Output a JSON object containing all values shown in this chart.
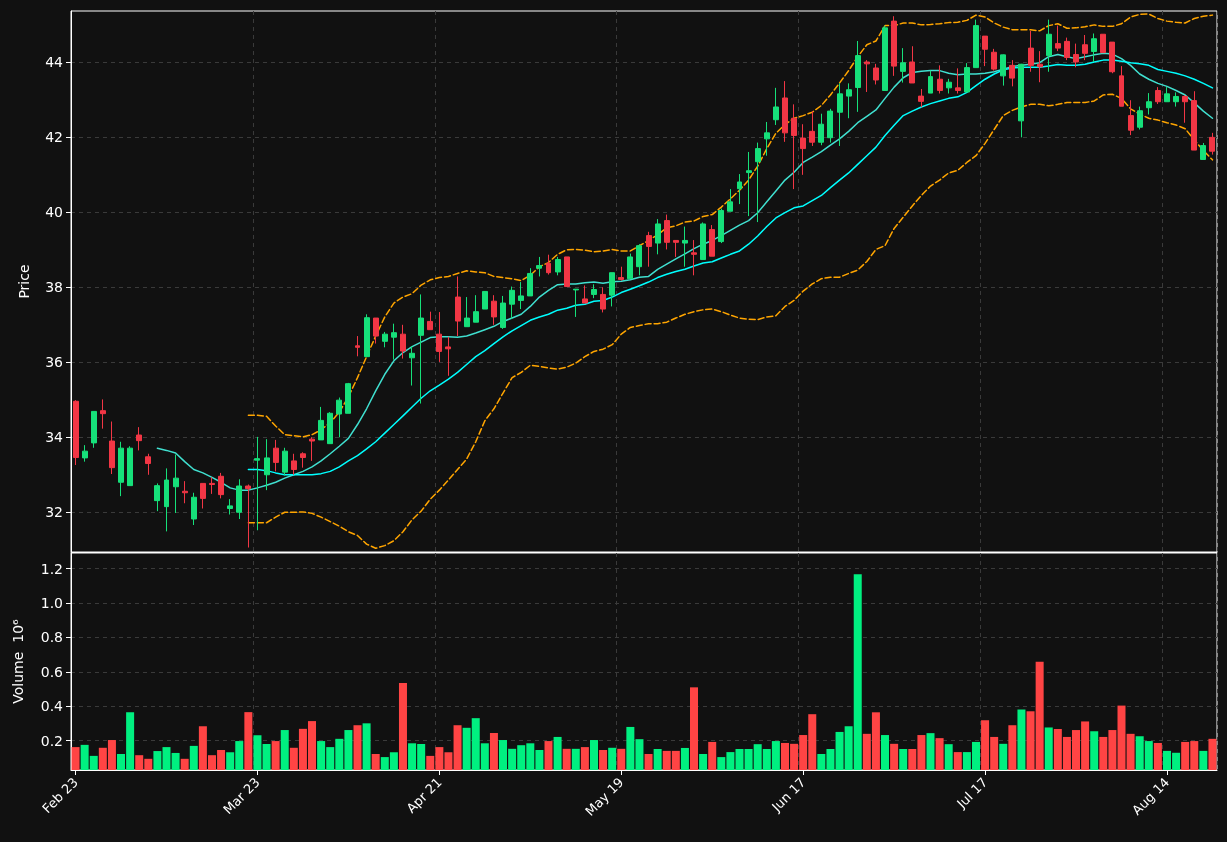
{
  "chart_data": [
    {
      "type": "candlestick",
      "ylabel": "Price",
      "grid": true,
      "tick_labels": "y",
      "categories": [
        null,
        null,
        null,
        null,
        null,
        null,
        null,
        null,
        null,
        null,
        null,
        null,
        null,
        null,
        null,
        null,
        null,
        null,
        null,
        null,
        null,
        null,
        null,
        null,
        null,
        null,
        null,
        null,
        null,
        null,
        null,
        null,
        null,
        null,
        null,
        null,
        null,
        null,
        null,
        null,
        null,
        null,
        null,
        null,
        null,
        null,
        null,
        null,
        null,
        null,
        null,
        null,
        null,
        null,
        null,
        null,
        null,
        null,
        null,
        null,
        null,
        null,
        null,
        null,
        null,
        null,
        null,
        null,
        null,
        null,
        null,
        null,
        null,
        null,
        null,
        null,
        null,
        null,
        null,
        null,
        null,
        null,
        null,
        null,
        null,
        null,
        null,
        null,
        null,
        null,
        null,
        null,
        null,
        null,
        null,
        null,
        null,
        null,
        null,
        null,
        null,
        null,
        null,
        null,
        null,
        null,
        null,
        null,
        null,
        null,
        null,
        null,
        null,
        null,
        null,
        null,
        null,
        null,
        null,
        null,
        null,
        null,
        null,
        null,
        null,
        null
      ],
      "ylim": [
        30.93,
        45.36
      ],
      "yticks": [
        32,
        34,
        36,
        38,
        40,
        42,
        44
      ],
      "ohlc": [
        [
          34.95,
          34.98,
          33.25,
          33.45
        ],
        [
          33.44,
          33.78,
          33.34,
          33.62
        ],
        [
          33.84,
          34.68,
          33.71,
          34.68
        ],
        [
          34.7,
          35.0,
          34.22,
          34.62
        ],
        [
          33.89,
          34.41,
          33.01,
          33.18
        ],
        [
          32.79,
          33.87,
          32.42,
          33.7
        ],
        [
          32.7,
          33.75,
          32.7,
          33.7
        ],
        [
          34.05,
          34.26,
          33.64,
          33.9
        ],
        [
          33.47,
          33.55,
          32.99,
          33.29
        ],
        [
          32.3,
          32.76,
          32.02,
          32.7
        ],
        [
          32.14,
          33.16,
          31.48,
          32.85
        ],
        [
          32.67,
          33.53,
          31.97,
          32.9
        ],
        [
          32.55,
          32.82,
          32.23,
          32.51
        ],
        [
          31.81,
          32.51,
          31.65,
          32.39
        ],
        [
          32.76,
          32.76,
          32.09,
          32.36
        ],
        [
          32.76,
          32.92,
          32.48,
          32.73
        ],
        [
          32.95,
          33.04,
          32.36,
          32.46
        ],
        [
          32.09,
          32.34,
          31.93,
          32.16
        ],
        [
          31.99,
          32.87,
          31.81,
          32.69
        ],
        [
          32.69,
          32.73,
          31.05,
          32.62
        ],
        [
          33.38,
          34.0,
          31.51,
          33.42
        ],
        [
          32.99,
          33.94,
          32.58,
          33.44
        ],
        [
          33.7,
          33.92,
          33.08,
          33.32
        ],
        [
          33.06,
          33.71,
          32.97,
          33.62
        ],
        [
          33.36,
          33.55,
          32.99,
          33.13
        ],
        [
          33.55,
          33.59,
          33.18,
          33.45
        ],
        [
          33.94,
          33.99,
          33.36,
          33.89
        ],
        [
          33.92,
          34.8,
          33.92,
          34.44
        ],
        [
          33.82,
          34.66,
          33.82,
          34.63
        ],
        [
          34.61,
          35.05,
          33.99,
          34.98
        ],
        [
          34.63,
          35.44,
          34.63,
          35.42
        ],
        [
          36.43,
          36.69,
          36.15,
          36.39
        ],
        [
          36.14,
          37.27,
          36.14,
          37.18
        ],
        [
          37.17,
          37.17,
          36.49,
          36.69
        ],
        [
          36.55,
          36.8,
          36.39,
          36.74
        ],
        [
          36.66,
          37.02,
          36.06,
          36.78
        ],
        [
          36.74,
          36.99,
          36.09,
          36.29
        ],
        [
          36.11,
          36.42,
          35.37,
          36.23
        ],
        [
          36.71,
          37.8,
          34.89,
          37.17
        ],
        [
          37.08,
          37.34,
          36.86,
          36.86
        ],
        [
          36.74,
          37.33,
          36.0,
          36.28
        ],
        [
          36.4,
          36.67,
          35.63,
          36.35
        ],
        [
          37.73,
          38.28,
          36.69,
          37.09
        ],
        [
          36.94,
          37.73,
          36.94,
          37.17
        ],
        [
          37.06,
          37.78,
          37.06,
          37.34
        ],
        [
          37.41,
          37.89,
          37.41,
          37.88
        ],
        [
          37.62,
          37.78,
          36.99,
          37.2
        ],
        [
          36.92,
          37.76,
          36.88,
          37.57
        ],
        [
          37.54,
          38.01,
          37.15,
          37.91
        ],
        [
          37.64,
          38.13,
          37.41,
          37.76
        ],
        [
          37.76,
          38.5,
          37.76,
          38.36
        ],
        [
          38.5,
          38.8,
          38.28,
          38.57
        ],
        [
          38.63,
          38.86,
          38.33,
          38.38
        ],
        [
          38.4,
          38.8,
          38.31,
          38.73
        ],
        [
          38.8,
          38.8,
          38.01,
          38.01
        ],
        [
          37.92,
          37.94,
          37.2,
          37.94
        ],
        [
          37.68,
          38.04,
          37.57,
          37.57
        ],
        [
          37.8,
          38.07,
          37.7,
          37.93
        ],
        [
          37.8,
          37.99,
          37.32,
          37.41
        ],
        [
          37.78,
          38.38,
          37.48,
          38.38
        ],
        [
          38.25,
          38.54,
          38.17,
          38.2
        ],
        [
          38.22,
          38.89,
          38.22,
          38.8
        ],
        [
          38.54,
          39.14,
          38.31,
          39.1
        ],
        [
          39.37,
          39.47,
          38.54,
          39.08
        ],
        [
          39.17,
          39.81,
          38.87,
          39.68
        ],
        [
          39.77,
          39.93,
          39.0,
          39.19
        ],
        [
          39.24,
          39.24,
          38.8,
          39.19
        ],
        [
          39.17,
          39.61,
          38.54,
          39.24
        ],
        [
          38.91,
          39.25,
          38.31,
          38.87
        ],
        [
          38.73,
          39.72,
          38.73,
          39.68
        ],
        [
          39.53,
          39.65,
          38.82,
          38.82
        ],
        [
          39.21,
          40.09,
          39.17,
          40.04
        ],
        [
          40.02,
          40.61,
          40.02,
          40.27
        ],
        [
          40.62,
          41.01,
          40.21,
          40.8
        ],
        [
          41.05,
          41.6,
          39.89,
          41.1
        ],
        [
          41.34,
          41.85,
          39.73,
          41.69
        ],
        [
          41.95,
          42.4,
          41.5,
          42.11
        ],
        [
          42.46,
          43.31,
          42.32,
          42.8
        ],
        [
          43.04,
          43.49,
          41.87,
          42.11
        ],
        [
          42.5,
          42.87,
          40.61,
          42.04
        ],
        [
          41.97,
          42.34,
          40.99,
          41.69
        ],
        [
          42.15,
          42.69,
          41.76,
          41.86
        ],
        [
          41.86,
          42.62,
          41.78,
          42.34
        ],
        [
          41.98,
          42.75,
          41.85,
          42.69
        ],
        [
          42.66,
          43.43,
          41.76,
          43.15
        ],
        [
          43.09,
          43.43,
          42.5,
          43.26
        ],
        [
          43.32,
          44.56,
          42.67,
          44.17
        ],
        [
          44.0,
          44.05,
          43.2,
          43.95
        ],
        [
          43.84,
          43.95,
          43.4,
          43.52
        ],
        [
          43.24,
          44.97,
          43.24,
          44.91
        ],
        [
          45.09,
          45.22,
          43.63,
          43.89
        ],
        [
          43.75,
          44.37,
          43.45,
          43.98
        ],
        [
          44.0,
          44.42,
          43.44,
          43.44
        ],
        [
          43.09,
          43.28,
          42.79,
          42.95
        ],
        [
          43.17,
          43.77,
          43.17,
          43.61
        ],
        [
          43.54,
          43.91,
          43.16,
          43.24
        ],
        [
          43.31,
          43.55,
          43.16,
          43.46
        ],
        [
          43.31,
          43.83,
          43.16,
          43.24
        ],
        [
          43.2,
          43.97,
          43.2,
          43.85
        ],
        [
          43.85,
          45.13,
          43.85,
          44.97
        ],
        [
          44.69,
          44.69,
          43.89,
          44.34
        ],
        [
          44.26,
          44.35,
          43.77,
          43.81
        ],
        [
          43.63,
          44.2,
          43.37,
          44.19
        ],
        [
          43.91,
          44.05,
          43.35,
          43.57
        ],
        [
          42.43,
          43.95,
          41.99,
          43.94
        ],
        [
          44.37,
          44.83,
          43.74,
          43.91
        ],
        [
          43.94,
          44.29,
          43.46,
          43.87
        ],
        [
          44.17,
          45.13,
          43.74,
          44.74
        ],
        [
          44.49,
          44.97,
          44.29,
          44.37
        ],
        [
          44.55,
          44.65,
          44.05,
          44.12
        ],
        [
          44.2,
          44.49,
          43.86,
          44.0
        ],
        [
          44.46,
          44.72,
          44.05,
          44.23
        ],
        [
          44.28,
          44.76,
          44.0,
          44.62
        ],
        [
          44.74,
          44.74,
          44.25,
          44.25
        ],
        [
          44.53,
          44.53,
          43.7,
          43.74
        ],
        [
          43.63,
          43.89,
          42.82,
          42.82
        ],
        [
          42.57,
          42.98,
          42.05,
          42.18
        ],
        [
          42.26,
          42.81,
          42.2,
          42.7
        ],
        [
          42.78,
          43.17,
          42.6,
          42.94
        ],
        [
          43.24,
          43.33,
          42.88,
          42.94
        ],
        [
          42.94,
          43.33,
          42.94,
          43.15
        ],
        [
          42.94,
          43.19,
          42.81,
          43.08
        ],
        [
          43.08,
          43.12,
          42.38,
          42.94
        ],
        [
          42.97,
          43.22,
          41.65,
          41.65
        ],
        [
          41.4,
          41.84,
          41.4,
          41.77
        ],
        [
          41.99,
          42.11,
          41.53,
          41.62
        ]
      ],
      "colors": [
        "#f23645",
        "#16e07a",
        "#16e07a",
        "#f23645",
        "#f23645",
        "#16e07a",
        "#16e07a",
        "#f23645",
        "#f23645",
        "#16e07a",
        "#16e07a",
        "#16e07a",
        "#f23645",
        "#16e07a",
        "#f23645",
        "#f23645",
        "#f23645",
        "#16e07a",
        "#16e07a",
        "#f23645",
        "#16e07a",
        "#16e07a",
        "#f23645",
        "#16e07a",
        "#f23645",
        "#f23645",
        "#f23645",
        "#16e07a",
        "#16e07a",
        "#16e07a",
        "#16e07a",
        "#f23645",
        "#16e07a",
        "#f23645",
        "#16e07a",
        "#16e07a",
        "#f23645",
        "#16e07a",
        "#16e07a",
        "#f23645",
        "#f23645",
        "#f23645",
        "#f23645",
        "#16e07a",
        "#16e07a",
        "#16e07a",
        "#f23645",
        "#16e07a",
        "#16e07a",
        "#16e07a",
        "#16e07a",
        "#16e07a",
        "#f23645",
        "#16e07a",
        "#f23645",
        "#16e07a",
        "#f23645",
        "#16e07a",
        "#f23645",
        "#16e07a",
        "#f23645",
        "#16e07a",
        "#16e07a",
        "#f23645",
        "#16e07a",
        "#f23645",
        "#f23645",
        "#16e07a",
        "#f23645",
        "#16e07a",
        "#f23645",
        "#16e07a",
        "#16e07a",
        "#16e07a",
        "#16e07a",
        "#16e07a",
        "#16e07a",
        "#16e07a",
        "#f23645",
        "#f23645",
        "#f23645",
        "#f23645",
        "#16e07a",
        "#16e07a",
        "#16e07a",
        "#16e07a",
        "#16e07a",
        "#f23645",
        "#f23645",
        "#16e07a",
        "#f23645",
        "#16e07a",
        "#f23645",
        "#f23645",
        "#16e07a",
        "#f23645",
        "#16e07a",
        "#f23645",
        "#16e07a",
        "#16e07a",
        "#f23645",
        "#f23645",
        "#16e07a",
        "#f23645",
        "#16e07a",
        "#f23645",
        "#f23645",
        "#16e07a",
        "#f23645",
        "#f23645",
        "#f23645",
        "#f23645",
        "#16e07a",
        "#f23645",
        "#f23645",
        "#f23645",
        "#f23645",
        "#16e07a",
        "#16e07a",
        "#f23645",
        "#16e07a",
        "#16e07a",
        "#f23645",
        "#f23645",
        "#16e07a",
        "#f23645"
      ],
      "series": [
        {
          "type": "line",
          "color": "#40e0d0",
          "line_style": "solid",
          "values": [
            null,
            null,
            null,
            null,
            null,
            null,
            null,
            null,
            null,
            33.7,
            33.64,
            33.57,
            33.34,
            33.13,
            33.04,
            32.92,
            32.79,
            32.64,
            32.58,
            32.58,
            32.64,
            32.71,
            32.79,
            32.9,
            32.99,
            33.08,
            33.2,
            33.36,
            33.55,
            33.75,
            33.96,
            34.33,
            34.75,
            35.23,
            35.67,
            36.03,
            36.25,
            36.41,
            36.53,
            36.65,
            36.67,
            36.67,
            36.66,
            36.69,
            36.77,
            36.86,
            36.95,
            37.08,
            37.17,
            37.27,
            37.48,
            37.73,
            37.91,
            38.06,
            38.08,
            38.08,
            38.11,
            38.13,
            38.1,
            38.14,
            38.15,
            38.19,
            38.26,
            38.28,
            38.47,
            38.61,
            38.75,
            38.88,
            39.02,
            39.14,
            39.24,
            39.37,
            39.51,
            39.65,
            39.77,
            39.98,
            40.27,
            40.56,
            40.85,
            41.06,
            41.32,
            41.46,
            41.61,
            41.78,
            41.95,
            42.15,
            42.38,
            42.55,
            42.72,
            43.03,
            43.33,
            43.58,
            43.72,
            43.75,
            43.77,
            43.77,
            43.7,
            43.66,
            43.68,
            43.68,
            43.7,
            43.74,
            43.81,
            43.88,
            43.91,
            43.94,
            43.98,
            44.14,
            44.2,
            44.14,
            44.09,
            44.14,
            44.19,
            44.23,
            44.21,
            44.09,
            43.91,
            43.68,
            43.54,
            43.43,
            43.35,
            43.24,
            43.12,
            42.91,
            42.69,
            42.5
          ]
        },
        {
          "type": "line",
          "color": "#00ffff",
          "line_style": "solid",
          "values": [
            null,
            null,
            null,
            null,
            null,
            null,
            null,
            null,
            null,
            null,
            null,
            null,
            null,
            null,
            null,
            null,
            null,
            null,
            null,
            33.13,
            33.13,
            33.1,
            33.04,
            32.99,
            32.99,
            32.99,
            32.99,
            33.02,
            33.08,
            33.2,
            33.36,
            33.5,
            33.68,
            33.87,
            34.1,
            34.33,
            34.56,
            34.8,
            35.03,
            35.23,
            35.38,
            35.54,
            35.72,
            35.93,
            36.14,
            36.3,
            36.49,
            36.67,
            36.83,
            36.97,
            37.11,
            37.2,
            37.27,
            37.38,
            37.43,
            37.51,
            37.54,
            37.62,
            37.64,
            37.73,
            37.85,
            37.94,
            38.03,
            38.13,
            38.25,
            38.34,
            38.41,
            38.47,
            38.56,
            38.64,
            38.67,
            38.77,
            38.87,
            38.96,
            39.14,
            39.36,
            39.61,
            39.84,
            39.98,
            40.11,
            40.16,
            40.3,
            40.44,
            40.65,
            40.85,
            41.04,
            41.27,
            41.5,
            41.73,
            42.04,
            42.31,
            42.57,
            42.69,
            42.8,
            42.89,
            42.96,
            43.03,
            43.07,
            43.19,
            43.37,
            43.54,
            43.68,
            43.79,
            43.84,
            43.86,
            43.86,
            43.86,
            43.89,
            43.93,
            43.91,
            43.91,
            43.94,
            44.0,
            44.05,
            44.05,
            44.02,
            43.98,
            43.95,
            43.91,
            43.8,
            43.75,
            43.7,
            43.63,
            43.54,
            43.43,
            43.31
          ]
        },
        {
          "type": "line",
          "color": "#ffa500",
          "line_style": "dashed",
          "values": [
            null,
            null,
            null,
            null,
            null,
            null,
            null,
            null,
            null,
            null,
            null,
            null,
            null,
            null,
            null,
            null,
            null,
            null,
            null,
            34.58,
            34.58,
            34.55,
            34.29,
            34.06,
            34.03,
            34.0,
            34.06,
            34.19,
            34.38,
            34.66,
            35.07,
            35.58,
            36.14,
            36.69,
            37.2,
            37.57,
            37.73,
            37.82,
            38.05,
            38.19,
            38.25,
            38.28,
            38.36,
            38.43,
            38.4,
            38.38,
            38.28,
            38.25,
            38.22,
            38.17,
            38.31,
            38.54,
            38.65,
            38.87,
            38.99,
            39.0,
            38.98,
            38.94,
            38.96,
            39.0,
            38.96,
            38.96,
            39.1,
            39.24,
            39.39,
            39.58,
            39.63,
            39.73,
            39.76,
            39.88,
            39.93,
            40.13,
            40.35,
            40.58,
            40.85,
            41.22,
            41.69,
            42.1,
            42.33,
            42.5,
            42.57,
            42.66,
            42.84,
            43.12,
            43.44,
            43.77,
            44.14,
            44.46,
            44.56,
            44.97,
            44.97,
            45.04,
            45.04,
            44.99,
            45.0,
            45.02,
            45.05,
            45.06,
            45.11,
            45.25,
            45.2,
            45.04,
            44.93,
            44.86,
            44.86,
            44.86,
            44.83,
            44.97,
            45.02,
            44.9,
            44.91,
            44.94,
            44.99,
            44.95,
            44.95,
            45.02,
            45.2,
            45.27,
            45.28,
            45.16,
            45.09,
            45.06,
            45.04,
            45.16,
            45.22,
            45.25
          ]
        },
        {
          "type": "line",
          "color": "#ffa500",
          "line_style": "dashed",
          "values": [
            null,
            null,
            null,
            null,
            null,
            null,
            null,
            null,
            null,
            null,
            null,
            null,
            null,
            null,
            null,
            null,
            null,
            null,
            null,
            31.71,
            31.71,
            31.71,
            31.86,
            31.99,
            31.99,
            32.0,
            31.96,
            31.86,
            31.74,
            31.62,
            31.47,
            31.37,
            31.14,
            31.03,
            31.1,
            31.23,
            31.47,
            31.79,
            32.02,
            32.34,
            32.58,
            32.85,
            33.13,
            33.41,
            33.87,
            34.43,
            34.75,
            35.17,
            35.58,
            35.72,
            35.91,
            35.88,
            35.84,
            35.81,
            35.86,
            35.97,
            36.14,
            36.28,
            36.34,
            36.46,
            36.74,
            36.92,
            36.97,
            37.02,
            37.02,
            37.06,
            37.17,
            37.27,
            37.34,
            37.39,
            37.41,
            37.34,
            37.25,
            37.17,
            37.14,
            37.13,
            37.2,
            37.23,
            37.48,
            37.64,
            37.89,
            38.08,
            38.22,
            38.26,
            38.26,
            38.36,
            38.45,
            38.68,
            39.0,
            39.1,
            39.56,
            39.86,
            40.16,
            40.44,
            40.69,
            40.85,
            41.04,
            41.11,
            41.32,
            41.5,
            41.83,
            42.2,
            42.57,
            42.71,
            42.8,
            42.87,
            42.87,
            42.83,
            42.87,
            42.92,
            42.92,
            42.92,
            42.96,
            43.12,
            43.14,
            43.03,
            42.75,
            42.61,
            42.5,
            42.45,
            42.38,
            42.32,
            42.22,
            41.92,
            41.64,
            41.39
          ]
        }
      ]
    },
    {
      "type": "bar",
      "ylabel": "Volume  10⁶",
      "grid": true,
      "categories": [
        "Feb 23",
        null,
        null,
        null,
        null,
        null,
        null,
        null,
        null,
        null,
        null,
        null,
        null,
        null,
        null,
        null,
        null,
        null,
        null,
        null,
        "Mar 23",
        null,
        null,
        null,
        null,
        null,
        null,
        null,
        null,
        null,
        null,
        null,
        null,
        null,
        null,
        null,
        null,
        null,
        null,
        null,
        "Apr 21",
        null,
        null,
        null,
        null,
        null,
        null,
        null,
        null,
        null,
        null,
        null,
        null,
        null,
        null,
        null,
        null,
        null,
        null,
        null,
        "May 19",
        null,
        null,
        null,
        null,
        null,
        null,
        null,
        null,
        null,
        null,
        null,
        null,
        null,
        null,
        null,
        null,
        null,
        null,
        null,
        "Jun 17",
        null,
        null,
        null,
        null,
        null,
        null,
        null,
        null,
        null,
        null,
        null,
        null,
        null,
        null,
        null,
        null,
        null,
        null,
        null,
        "Jul 17",
        null,
        null,
        null,
        null,
        null,
        null,
        null,
        null,
        null,
        null,
        null,
        null,
        null,
        null,
        null,
        null,
        null,
        null,
        null,
        "Aug 14",
        null,
        null,
        null,
        null,
        null
      ],
      "ylim": [
        0.03,
        1.29
      ],
      "yticks": [
        0.2,
        0.4,
        0.6,
        0.8,
        {
          "value": 1,
          "label": "1.0"
        },
        1.2
      ],
      "values": [
        0.163,
        0.176,
        0.112,
        0.159,
        0.204,
        0.123,
        0.366,
        0.116,
        0.095,
        0.14,
        0.163,
        0.129,
        0.095,
        0.17,
        0.284,
        0.116,
        0.146,
        0.133,
        0.198,
        0.366,
        0.232,
        0.181,
        0.198,
        0.262,
        0.159,
        0.269,
        0.314,
        0.198,
        0.163,
        0.211,
        0.262,
        0.29,
        0.301,
        0.123,
        0.105,
        0.133,
        0.535,
        0.185,
        0.181,
        0.112,
        0.163,
        0.133,
        0.29,
        0.275,
        0.331,
        0.185,
        0.245,
        0.204,
        0.153,
        0.174,
        0.185,
        0.146,
        0.198,
        0.222,
        0.153,
        0.153,
        0.163,
        0.204,
        0.146,
        0.159,
        0.153,
        0.28,
        0.209,
        0.123,
        0.152,
        0.141,
        0.141,
        0.158,
        0.51,
        0.123,
        0.193,
        0.105,
        0.134,
        0.152,
        0.152,
        0.18,
        0.152,
        0.198,
        0.187,
        0.182,
        0.233,
        0.354,
        0.123,
        0.152,
        0.251,
        0.284,
        1.167,
        0.24,
        0.365,
        0.233,
        0.182,
        0.152,
        0.152,
        0.233,
        0.244,
        0.215,
        0.18,
        0.134,
        0.134,
        0.193,
        0.319,
        0.222,
        0.182,
        0.29,
        0.382,
        0.371,
        0.659,
        0.277,
        0.268,
        0.222,
        0.262,
        0.312,
        0.255,
        0.222,
        0.262,
        0.404,
        0.24,
        0.226,
        0.198,
        0.187,
        0.141,
        0.13,
        0.193,
        0.198,
        0.141,
        0.211
      ],
      "colors": [
        "#ff4444",
        "#00f080",
        "#00f080",
        "#ff4444",
        "#ff4444",
        "#00f080",
        "#00f080",
        "#ff4444",
        "#ff4444",
        "#00f080",
        "#00f080",
        "#00f080",
        "#ff4444",
        "#00f080",
        "#ff4444",
        "#ff4444",
        "#ff4444",
        "#00f080",
        "#00f080",
        "#ff4444",
        "#00f080",
        "#00f080",
        "#ff4444",
        "#00f080",
        "#ff4444",
        "#ff4444",
        "#ff4444",
        "#00f080",
        "#00f080",
        "#00f080",
        "#00f080",
        "#ff4444",
        "#00f080",
        "#ff4444",
        "#00f080",
        "#00f080",
        "#ff4444",
        "#00f080",
        "#00f080",
        "#ff4444",
        "#ff4444",
        "#ff4444",
        "#ff4444",
        "#00f080",
        "#00f080",
        "#00f080",
        "#ff4444",
        "#00f080",
        "#00f080",
        "#00f080",
        "#00f080",
        "#00f080",
        "#ff4444",
        "#00f080",
        "#ff4444",
        "#00f080",
        "#ff4444",
        "#00f080",
        "#ff4444",
        "#00f080",
        "#ff4444",
        "#00f080",
        "#00f080",
        "#ff4444",
        "#00f080",
        "#ff4444",
        "#ff4444",
        "#00f080",
        "#ff4444",
        "#00f080",
        "#ff4444",
        "#00f080",
        "#00f080",
        "#00f080",
        "#00f080",
        "#00f080",
        "#00f080",
        "#00f080",
        "#ff4444",
        "#ff4444",
        "#ff4444",
        "#ff4444",
        "#00f080",
        "#00f080",
        "#00f080",
        "#00f080",
        "#00f080",
        "#ff4444",
        "#ff4444",
        "#00f080",
        "#ff4444",
        "#00f080",
        "#ff4444",
        "#ff4444",
        "#00f080",
        "#ff4444",
        "#00f080",
        "#ff4444",
        "#00f080",
        "#00f080",
        "#ff4444",
        "#ff4444",
        "#00f080",
        "#ff4444",
        "#00f080",
        "#ff4444",
        "#ff4444",
        "#00f080",
        "#ff4444",
        "#ff4444",
        "#ff4444",
        "#ff4444",
        "#00f080",
        "#ff4444",
        "#ff4444",
        "#ff4444",
        "#ff4444",
        "#00f080",
        "#00f080",
        "#ff4444",
        "#00f080",
        "#00f080",
        "#ff4444",
        "#ff4444",
        "#00f080",
        "#ff4444"
      ]
    }
  ]
}
